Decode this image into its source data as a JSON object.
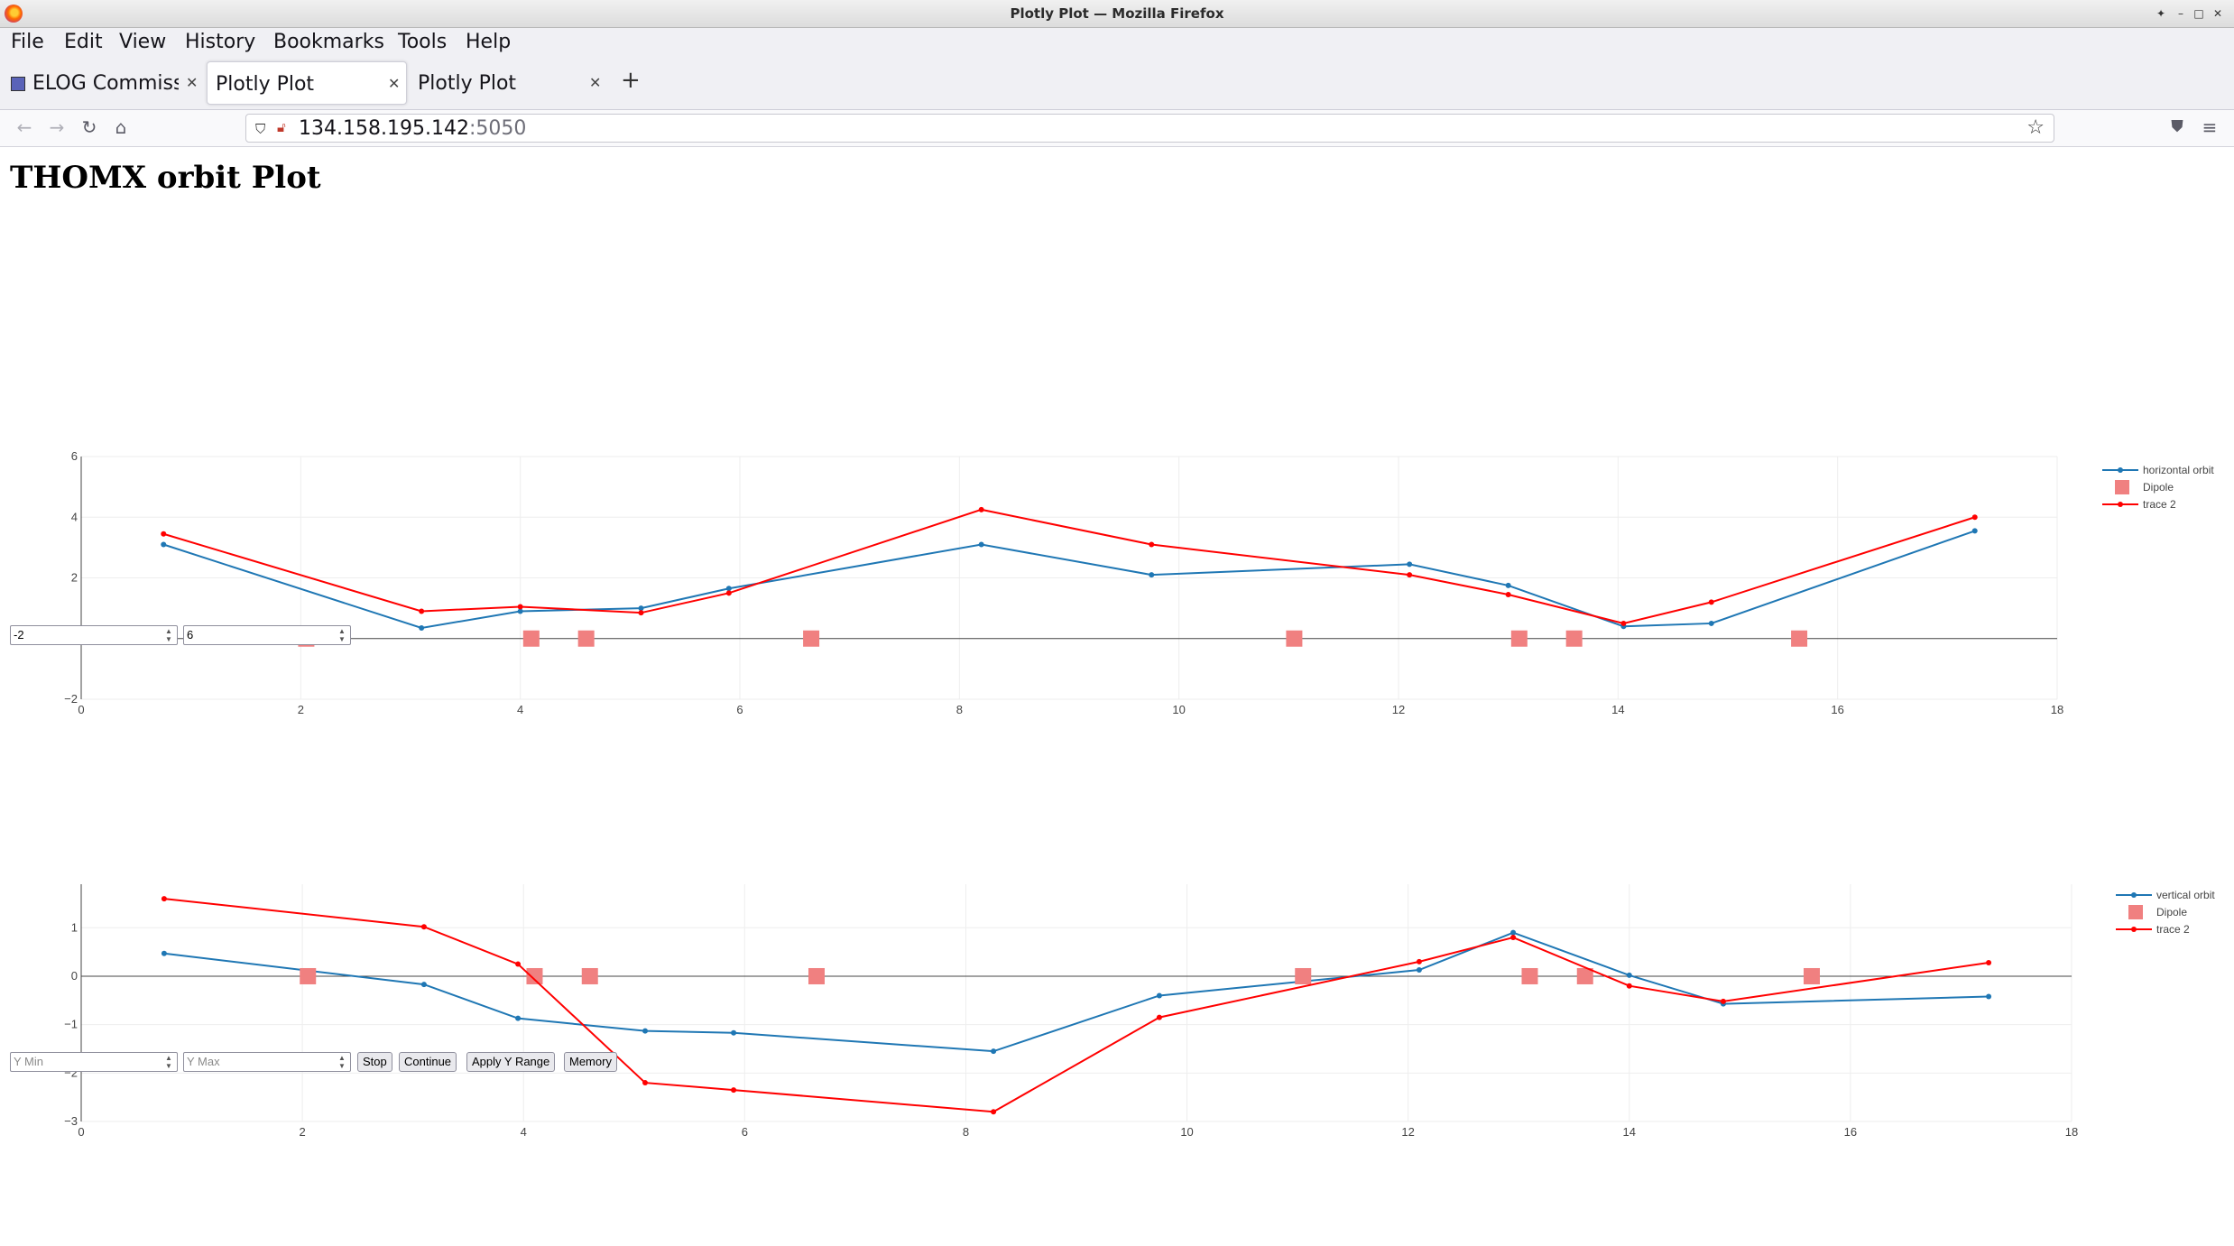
{
  "window": {
    "title": "Plotly Plot — Mozilla Firefox"
  },
  "menu": [
    "File",
    "Edit",
    "View",
    "History",
    "Bookmarks",
    "Tools",
    "Help"
  ],
  "tabs": [
    {
      "label": "ELOG Commissi",
      "active": false
    },
    {
      "label": "Plotly Plot",
      "active": true
    },
    {
      "label": "Plotly Plot",
      "active": false
    }
  ],
  "urlbar": {
    "host": "134.158.195.142",
    "port": ":5050"
  },
  "page": {
    "title": "THOMX orbit Plot"
  },
  "controls1": {
    "ymin_value": "-2",
    "ymax_value": "6"
  },
  "controls2": {
    "ymin_placeholder": "Y Min",
    "ymax_placeholder": "Y Max",
    "stop": "Stop",
    "continue": "Continue",
    "apply": "Apply Y Range",
    "memory": "Memory"
  },
  "colors": {
    "orbit": "#1f77b4",
    "trace2": "#ff0000",
    "dipole": "#f08080"
  },
  "chart_data": [
    {
      "type": "line",
      "xlim": [
        0,
        18
      ],
      "ylim": [
        -2,
        6
      ],
      "x_ticks": [
        0,
        2,
        4,
        6,
        8,
        10,
        12,
        14,
        16,
        18
      ],
      "y_ticks": [
        -2,
        0,
        2,
        4,
        6
      ],
      "legend": "top-right",
      "series": [
        {
          "name": "horizontal orbit",
          "kind": "line",
          "x": [
            0.75,
            3.1,
            4.0,
            5.1,
            5.9,
            8.2,
            9.75,
            12.1,
            13.0,
            14.05,
            14.85,
            17.25
          ],
          "y": [
            3.1,
            0.35,
            0.9,
            1.0,
            1.65,
            3.1,
            2.1,
            2.45,
            1.75,
            0.4,
            0.5,
            3.55
          ]
        },
        {
          "name": "Dipole",
          "kind": "marker",
          "x": [
            2.05,
            4.1,
            4.6,
            6.65,
            11.05,
            13.1,
            13.6,
            15.65
          ],
          "y": [
            0,
            0,
            0,
            0,
            0,
            0,
            0,
            0
          ]
        },
        {
          "name": "trace 2",
          "kind": "line",
          "x": [
            0.75,
            3.1,
            4.0,
            5.1,
            5.9,
            8.2,
            9.75,
            12.1,
            13.0,
            14.05,
            14.85,
            17.25
          ],
          "y": [
            3.45,
            0.9,
            1.05,
            0.85,
            1.5,
            4.25,
            3.1,
            2.1,
            1.45,
            0.5,
            1.2,
            4.0
          ]
        }
      ]
    },
    {
      "type": "line",
      "xlim": [
        0,
        18
      ],
      "ylim": [
        -3,
        1.9
      ],
      "x_ticks": [
        0,
        2,
        4,
        6,
        8,
        10,
        12,
        14,
        16,
        18
      ],
      "y_ticks": [
        -3,
        -2,
        -1,
        0,
        1
      ],
      "legend": "top-right",
      "series": [
        {
          "name": "vertical orbit",
          "kind": "line",
          "x": [
            0.75,
            3.1,
            3.95,
            5.1,
            5.9,
            8.25,
            9.75,
            12.1,
            12.95,
            14.0,
            14.85,
            17.25
          ],
          "y": [
            0.47,
            -0.17,
            -0.87,
            -1.13,
            -1.17,
            -1.55,
            -0.4,
            0.13,
            0.9,
            0.02,
            -0.57,
            -0.42
          ]
        },
        {
          "name": "Dipole",
          "kind": "marker",
          "x": [
            2.05,
            4.1,
            4.6,
            6.65,
            11.05,
            13.1,
            13.6,
            15.65
          ],
          "y": [
            0,
            0,
            0,
            0,
            0,
            0,
            0,
            0
          ]
        },
        {
          "name": "trace 2",
          "kind": "line",
          "x": [
            0.75,
            3.1,
            3.95,
            5.1,
            5.9,
            8.25,
            9.75,
            12.1,
            12.95,
            14.0,
            14.85,
            17.25
          ],
          "y": [
            1.6,
            1.02,
            0.25,
            -2.2,
            -2.35,
            -2.8,
            -0.85,
            0.3,
            0.8,
            -0.2,
            -0.52,
            0.28
          ]
        }
      ]
    }
  ]
}
